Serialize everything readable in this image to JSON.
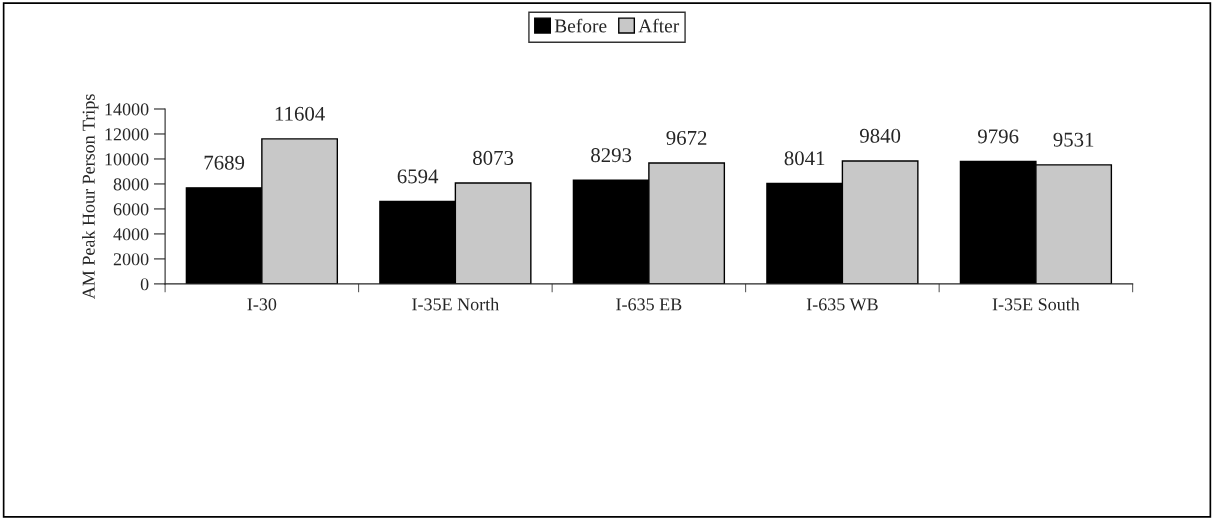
{
  "chart_data": {
    "type": "bar",
    "ylabel": "AM Peak Hour Person Trips",
    "categories": [
      "I-30",
      "I-35E North",
      "I-635 EB",
      "I-635 WB",
      "I-35E South"
    ],
    "series": [
      {
        "name": "Before",
        "color": "#000000",
        "values": [
          7689,
          6594,
          8293,
          8041,
          9796
        ]
      },
      {
        "name": "After",
        "color": "#c8c8c8",
        "values": [
          11604,
          8073,
          9672,
          9840,
          9531
        ]
      }
    ],
    "ylim": [
      0,
      14000
    ],
    "yticks": [
      0,
      2000,
      4000,
      6000,
      8000,
      10000,
      12000,
      14000
    ],
    "data_labels": true,
    "grid": false,
    "legend": "top"
  }
}
